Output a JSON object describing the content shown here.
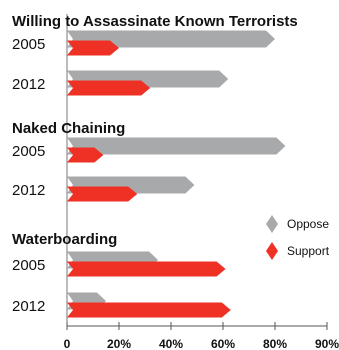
{
  "chart_data": {
    "type": "bar",
    "orientation": "horizontal",
    "groups": [
      {
        "title": "Willing to Assassinate Known Terrorists",
        "rows": [
          {
            "year": "2005",
            "oppose": 80,
            "support": 20
          },
          {
            "year": "2012",
            "oppose": 62,
            "support": 32
          }
        ]
      },
      {
        "title": "Naked Chaining",
        "rows": [
          {
            "year": "2005",
            "oppose": 84,
            "support": 14
          },
          {
            "year": "2012",
            "oppose": 49,
            "support": 27
          }
        ]
      },
      {
        "title": "Waterboarding",
        "rows": [
          {
            "year": "2005",
            "oppose": 35,
            "support": 61
          },
          {
            "year": "2012",
            "oppose": 15,
            "support": 63
          }
        ]
      }
    ],
    "series": [
      {
        "name": "Oppose",
        "key": "oppose",
        "color": "#a8a9ab"
      },
      {
        "name": "Support",
        "key": "support",
        "color": "#ee3124"
      }
    ],
    "xticks": [
      "0",
      "20%",
      "40%",
      "60%",
      "80%",
      "90%"
    ],
    "xlim": [
      0,
      100
    ],
    "legend_position": "right"
  }
}
